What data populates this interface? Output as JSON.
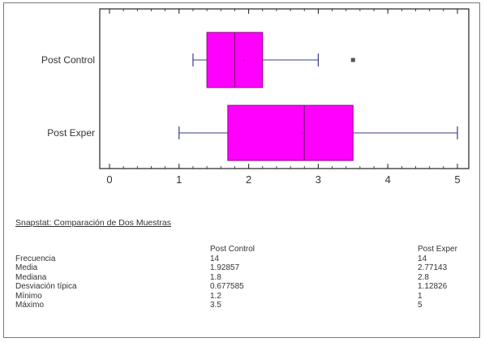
{
  "chart_data": {
    "type": "boxplot",
    "xlim": [
      0,
      5
    ],
    "x_ticks": [
      "0",
      "1",
      "2",
      "3",
      "4",
      "5"
    ],
    "series": [
      {
        "name": "Post Control",
        "whisker_low": 1.2,
        "q1": 1.4,
        "median": 1.8,
        "q3": 2.2,
        "whisker_high": 3.0,
        "mean": 1.92857,
        "outliers": [
          3.5
        ]
      },
      {
        "name": "Post Exper",
        "whisker_low": 1.0,
        "q1": 1.7,
        "median": 2.8,
        "q3": 3.5,
        "whisker_high": 5.0,
        "mean": 2.77143,
        "outliers": []
      }
    ],
    "colors": {
      "box": "#ff00ff",
      "box_stroke": "#8a0080",
      "whisker": "#3b3b8f",
      "axis": "#222222"
    }
  },
  "summary": {
    "title": "Snapstat: Comparación de Dos Muestras",
    "columns": [
      "Post Control",
      "Post Exper"
    ],
    "rows": [
      {
        "label": "Frecuencia",
        "values": [
          "14",
          "14"
        ]
      },
      {
        "label": "Media",
        "values": [
          "1.92857",
          "2.77143"
        ]
      },
      {
        "label": "Mediana",
        "values": [
          "1.8",
          "2.8"
        ]
      },
      {
        "label": "Desviación típica",
        "values": [
          "0.677585",
          "1.12826"
        ]
      },
      {
        "label": "Mínimo",
        "values": [
          "1.2",
          "1"
        ]
      },
      {
        "label": "Máximo",
        "values": [
          "3.5",
          "5"
        ]
      }
    ]
  }
}
